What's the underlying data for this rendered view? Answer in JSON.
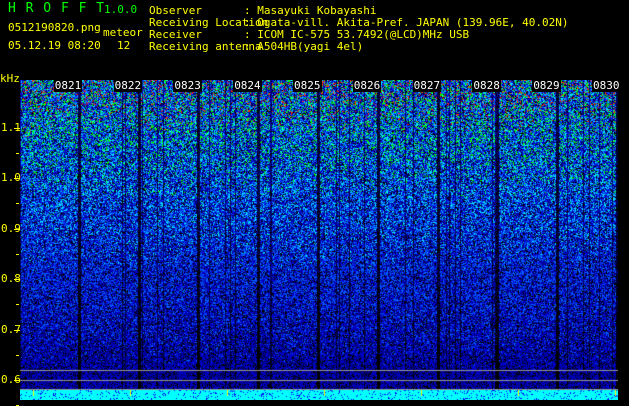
{
  "header": {
    "app_name": "H R O F F T",
    "version": "1.0.0",
    "filename": "0512190820.png",
    "datetime": "05.12.19 08:20",
    "meteor_label": "meteor",
    "meteor_count": "12"
  },
  "info": [
    {
      "label": "Observer",
      "value": ": Masayuki Kobayashi"
    },
    {
      "label": "Receiving Location",
      "value": ": Ogata-vill. Akita-Pref. JAPAN (139.96E, 40.02N)"
    },
    {
      "label": "Receiver",
      "value": ": ICOM IC-575 53.7492(@LCD)MHz USB"
    },
    {
      "label": "Receiving antenna",
      "value": ": A504HB(yagi 4el)"
    }
  ],
  "spectrogram": {
    "y_unit": "kHz",
    "y_ticks": [
      "1.1",
      "1.0",
      "0.9",
      "0.8",
      "0.7",
      "0.6"
    ],
    "time_labels": [
      "0821",
      "0822",
      "0823",
      "0824",
      "0825",
      "0826",
      "0827",
      "0828",
      "0829",
      "0830"
    ],
    "colors": {
      "text": "#ffff00",
      "title": "#00ff00",
      "baseline": "#00ffff"
    }
  }
}
